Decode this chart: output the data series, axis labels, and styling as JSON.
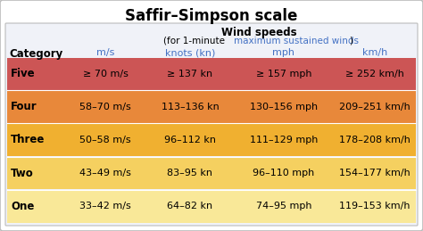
{
  "title": "Saffir–Simpson scale",
  "subtitle1": "Wind speeds",
  "subtitle2_plain": "(for 1-minute ",
  "subtitle2_link": "maximum sustained winds",
  "subtitle2_end": ")",
  "col_headers": [
    "m/s",
    "knots (kn)",
    "mph",
    "km/h"
  ],
  "categories": [
    "Five",
    "Four",
    "Three",
    "Two",
    "One"
  ],
  "row_colors": [
    "#cc5555",
    "#e8883a",
    "#f0b030",
    "#f5d060",
    "#f9e898"
  ],
  "data": [
    [
      "≥ 70 m/s",
      "≥ 137 kn",
      "≥ 157 mph",
      "≥ 252 km/h"
    ],
    [
      "58–70 m/s",
      "113–136 kn",
      "130–156 mph",
      "209–251 km/h"
    ],
    [
      "50–58 m/s",
      "96–112 kn",
      "111–129 mph",
      "178–208 km/h"
    ],
    [
      "43–49 m/s",
      "83–95 kn",
      "96–110 mph",
      "154–177 km/h"
    ],
    [
      "33–42 m/s",
      "64–82 kn",
      "74–95 mph",
      "119–153 km/h"
    ]
  ],
  "header_color": "#4472c4",
  "bg_color": "#f0f2f8",
  "outer_bg": "#ffffff",
  "border_color": "#bbbbbb",
  "title_fontsize": 12,
  "header_fontsize": 8.5,
  "col_header_fontsize": 8,
  "cell_fontsize": 8,
  "cat_fontsize": 8.5
}
